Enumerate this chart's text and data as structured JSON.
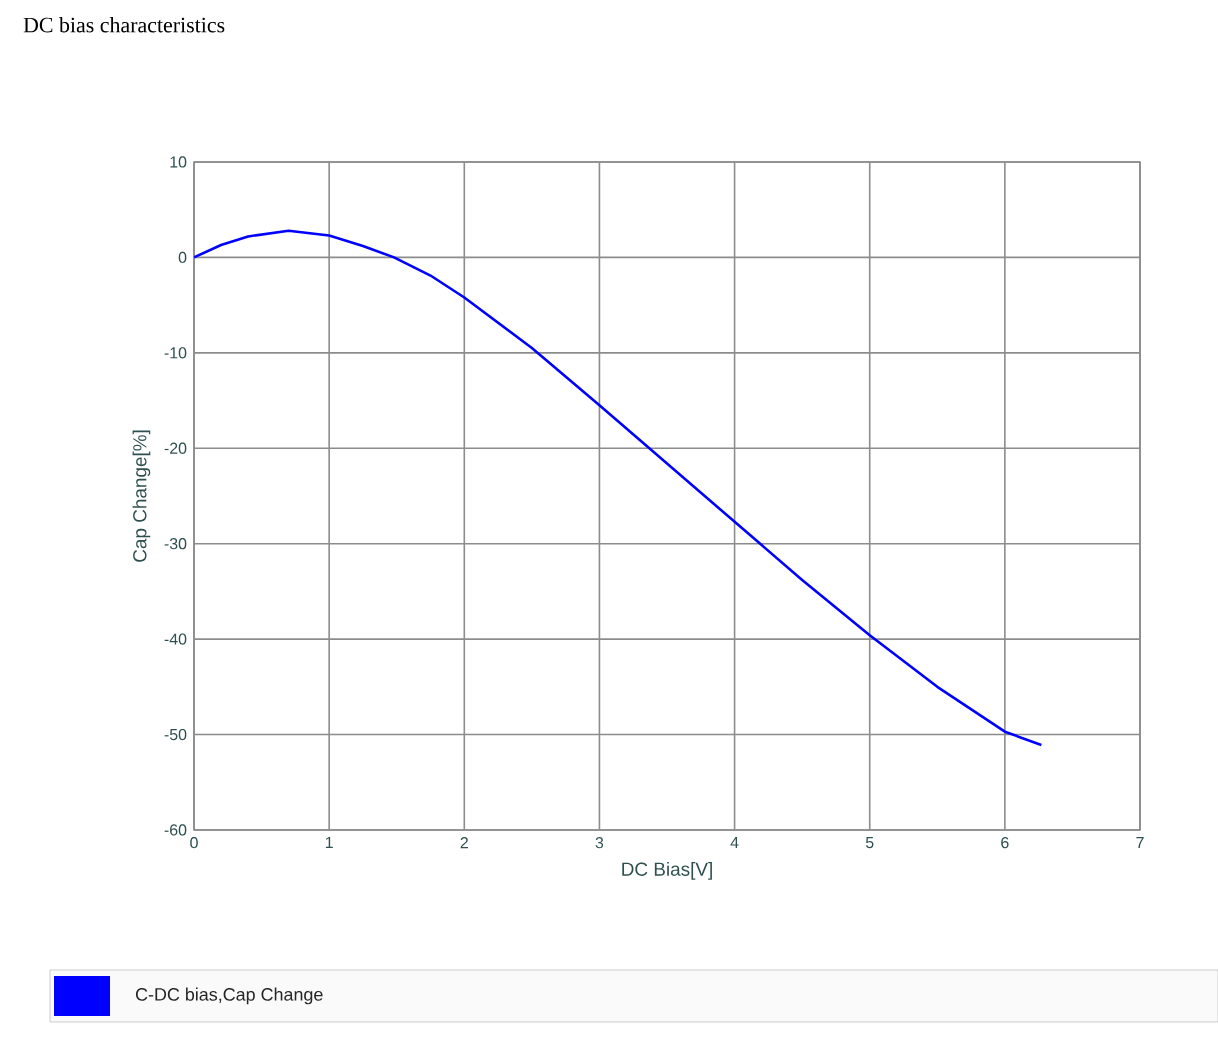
{
  "chart_data": {
    "type": "line",
    "title": "DC bias characteristics",
    "xlabel": "DC Bias[V]",
    "ylabel": "Cap Change[%]",
    "x": [
      0,
      0.2,
      0.4,
      0.7,
      1,
      1.25,
      1.48,
      1.75,
      2,
      2.5,
      3,
      3.5,
      4,
      4.5,
      5,
      5.5,
      6,
      6.27
    ],
    "series": [
      {
        "name": "C-DC bias,Cap Change",
        "color": "#0000ff",
        "values": [
          0,
          1.3,
          2.2,
          2.8,
          2.3,
          1.2,
          0,
          -1.9,
          -4.2,
          -9.5,
          -15.5,
          -21.6,
          -27.7,
          -33.8,
          -39.6,
          -45,
          -49.7,
          -51.1
        ]
      }
    ],
    "xlim": [
      0,
      7
    ],
    "xticks": [
      0,
      1,
      2,
      3,
      4,
      5,
      6,
      7
    ],
    "ylim": [
      -60,
      10
    ],
    "yticks": [
      -60,
      -50,
      -40,
      -30,
      -20,
      -10,
      0,
      10
    ],
    "grid": true,
    "legend": "bottom",
    "marker": "none",
    "line_style": "solid"
  }
}
